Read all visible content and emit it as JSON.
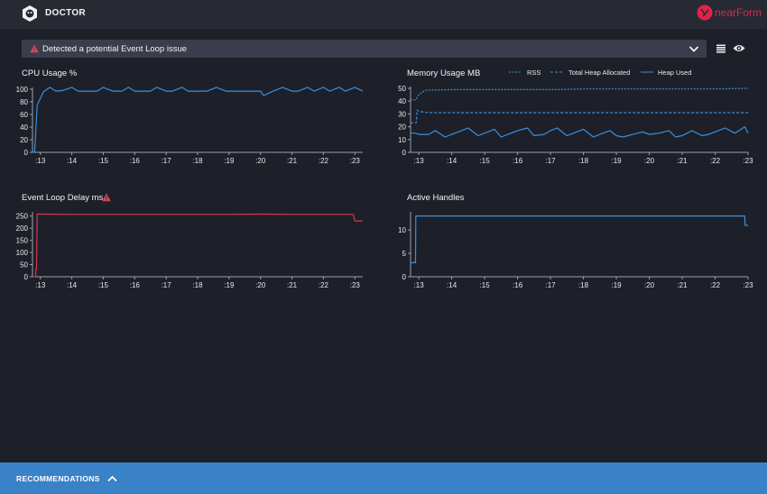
{
  "header": {
    "app_title": "DOCTOR",
    "brand_text": "nearForm"
  },
  "alert": {
    "text": "Detected a potential Event Loop issue"
  },
  "colors": {
    "blue": "#3a8fdc",
    "red": "#e0324e",
    "alert_icon": "#e0445e",
    "footer": "#3a82c8"
  },
  "icons": [
    "doctor-logo-icon",
    "warning-triangle-icon",
    "chevron-down-icon",
    "list-icon",
    "eye-icon",
    "chevron-up-icon"
  ],
  "footer": {
    "label": "RECOMMENDATIONS"
  },
  "chart_data": [
    {
      "id": "cpu",
      "type": "line",
      "title": "CPU Usage %",
      "x_tick_labels": [
        ":13",
        ":14",
        ":15",
        ":16",
        ":17",
        ":18",
        ":19",
        ":20",
        ":21",
        ":22",
        ":23"
      ],
      "y_ticks": [
        0,
        20,
        40,
        60,
        80,
        100
      ],
      "ylim": [
        0,
        100
      ],
      "xlim": [
        12.75,
        23.25
      ],
      "series": [
        {
          "color": "#3a8fdc",
          "dashed": false,
          "x": [
            12.75,
            12.82,
            12.9,
            13.1,
            13.3,
            13.5,
            13.7,
            14.0,
            14.2,
            14.5,
            14.8,
            15.0,
            15.3,
            15.6,
            15.8,
            16.0,
            16.2,
            16.5,
            16.7,
            17.0,
            17.2,
            17.5,
            17.7,
            18.0,
            18.3,
            18.6,
            18.9,
            19.1,
            19.4,
            19.7,
            20.0,
            20.1,
            20.4,
            20.7,
            21.0,
            21.2,
            21.5,
            21.7,
            22.0,
            22.2,
            22.5,
            22.7,
            23.0,
            23.25
          ],
          "y": [
            0,
            0,
            75,
            96,
            103,
            97,
            98,
            103,
            97,
            97,
            97,
            103,
            97,
            97,
            103,
            97,
            97,
            97,
            103,
            97,
            97,
            103,
            97,
            97,
            97,
            103,
            97,
            97,
            97,
            97,
            97,
            90,
            97,
            103,
            97,
            97,
            103,
            97,
            103,
            97,
            103,
            97,
            103,
            97
          ]
        }
      ]
    },
    {
      "id": "memory",
      "type": "line",
      "title": "Memory Usage MB",
      "legend": [
        "RSS",
        "Total Heap Allocated",
        "Heap Used"
      ],
      "x_tick_labels": [
        ":13",
        ":14",
        ":15",
        ":16",
        ":17",
        ":18",
        ":19",
        ":20",
        ":21",
        ":22",
        ":23"
      ],
      "y_ticks": [
        0,
        10,
        20,
        30,
        40,
        50
      ],
      "ylim": [
        0,
        50
      ],
      "xlim": [
        12.75,
        23.0
      ],
      "series": [
        {
          "name": "RSS",
          "color": "#3a8fdc",
          "dashed": true,
          "x": [
            12.75,
            12.9,
            13.0,
            13.2,
            14.0,
            15.0,
            16.0,
            17.0,
            18.0,
            19.0,
            20.0,
            21.0,
            22.0,
            23.0
          ],
          "y": [
            41,
            41,
            45,
            48.5,
            49,
            49,
            49,
            49,
            49.5,
            49.5,
            49.5,
            49.5,
            49.5,
            50
          ]
        },
        {
          "name": "Total Heap Allocated",
          "color": "#3a8fdc",
          "dashed": true,
          "x": [
            12.75,
            12.92,
            12.95,
            13.0,
            13.3,
            14.0,
            15.0,
            16.0,
            17.0,
            18.0,
            19.0,
            20.0,
            21.0,
            22.0,
            23.0
          ],
          "y": [
            23,
            23,
            33,
            32,
            31,
            31,
            31,
            31,
            31,
            31,
            31,
            31,
            31,
            31,
            31
          ]
        },
        {
          "name": "Heap Used",
          "color": "#3a8fdc",
          "dashed": false,
          "x": [
            12.75,
            12.9,
            13.0,
            13.3,
            13.5,
            13.8,
            14.0,
            14.5,
            14.8,
            15.0,
            15.3,
            15.5,
            15.8,
            16.0,
            16.3,
            16.5,
            16.8,
            17.0,
            17.2,
            17.5,
            17.8,
            18.0,
            18.3,
            18.5,
            18.8,
            19.0,
            19.2,
            19.5,
            19.8,
            20.0,
            20.3,
            20.6,
            20.8,
            21.0,
            21.3,
            21.6,
            21.8,
            22.0,
            22.3,
            22.6,
            22.9,
            23.0
          ],
          "y": [
            15,
            15,
            14,
            14,
            17,
            12,
            14,
            19,
            13,
            15,
            18,
            12,
            15,
            17,
            19,
            13,
            14,
            17,
            19,
            13,
            16,
            18,
            12,
            14,
            17,
            13,
            12,
            14,
            16,
            14,
            15,
            17,
            12,
            13,
            17,
            13,
            14,
            16,
            19,
            15,
            20,
            15
          ]
        }
      ]
    },
    {
      "id": "eventloop",
      "type": "line",
      "title": "Event Loop Delay ms",
      "x_tick_labels": [
        ":13",
        ":14",
        ":15",
        ":16",
        ":17",
        ":18",
        ":19",
        ":20",
        ":21",
        ":22",
        ":23"
      ],
      "y_ticks": [
        0,
        50,
        100,
        150,
        200,
        250
      ],
      "ylim": [
        0,
        260
      ],
      "xlim": [
        12.75,
        23.25
      ],
      "series": [
        {
          "color": "#e0324e",
          "dashed": false,
          "x": [
            12.75,
            12.85,
            12.86,
            12.88,
            12.9,
            13.0,
            14.0,
            15.0,
            16.0,
            17.0,
            18.0,
            19.0,
            20.0,
            21.0,
            22.0,
            22.95,
            23.0,
            23.25
          ],
          "y": [
            0,
            0,
            30,
            30,
            258,
            258,
            257,
            257,
            257,
            257,
            257,
            257,
            258,
            257,
            257,
            257,
            230,
            230
          ]
        }
      ]
    },
    {
      "id": "handles",
      "type": "line",
      "title": "Active Handles",
      "x_tick_labels": [
        ":13",
        ":14",
        ":15",
        ":16",
        ":17",
        ":18",
        ":19",
        ":20",
        ":21",
        ":22",
        ":23"
      ],
      "y_ticks": [
        0,
        5,
        10
      ],
      "ylim": [
        0,
        13.5
      ],
      "xlim": [
        12.75,
        23.0
      ],
      "series": [
        {
          "color": "#3a8fdc",
          "dashed": false,
          "x": [
            12.75,
            12.9,
            12.91,
            22.9,
            22.91,
            23.0
          ],
          "y": [
            3,
            3,
            13,
            13,
            11,
            11
          ]
        }
      ]
    }
  ]
}
